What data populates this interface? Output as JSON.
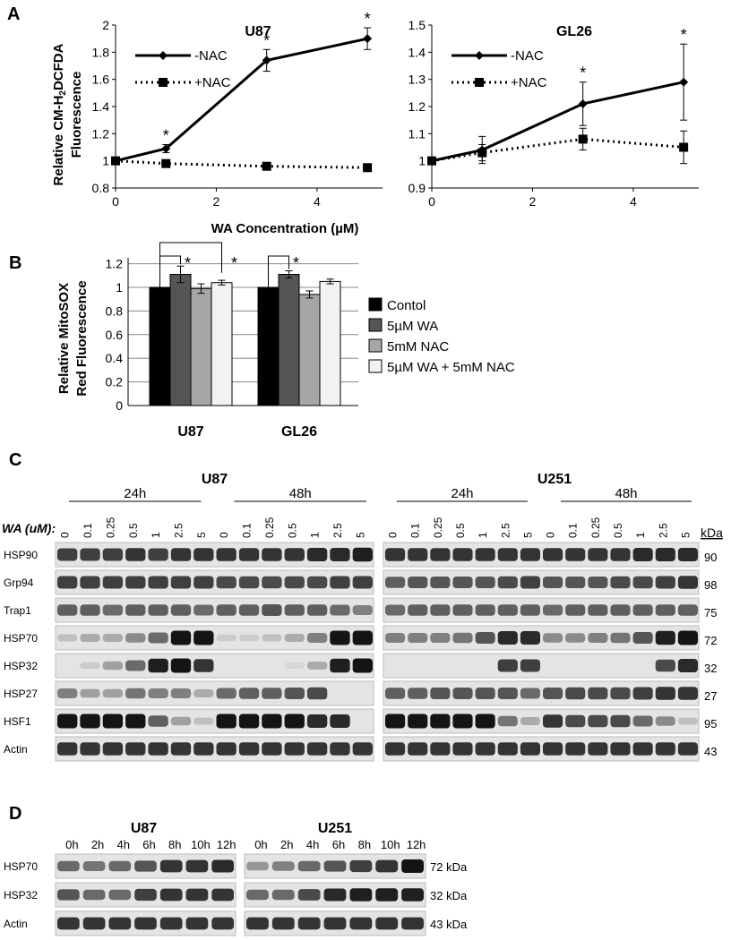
{
  "panels": {
    "A": "A",
    "B": "B",
    "C": "C",
    "D": "D"
  },
  "panelA": {
    "xlabel": "WA Concentration (µM)",
    "ylabel_line1": "Relative CM-H",
    "ylabel_sub": "2",
    "ylabel_rest": "DCFDA",
    "ylabel_line2": "Fluorescence",
    "legend": [
      "-NAC",
      "+NAC"
    ],
    "asterisk": "*"
  },
  "chart_data": [
    {
      "type": "line",
      "title": "U87",
      "x": [
        0,
        1,
        3,
        5
      ],
      "series": [
        {
          "name": "-NAC",
          "values": [
            1.0,
            1.09,
            1.74,
            1.9
          ],
          "errors": [
            0.0,
            0.03,
            0.08,
            0.08
          ]
        },
        {
          "name": "+NAC",
          "values": [
            1.0,
            0.98,
            0.96,
            0.95
          ],
          "errors": [
            0.0,
            0.0,
            0.0,
            0.0
          ]
        }
      ],
      "significant": [
        false,
        true,
        true,
        true
      ],
      "xticks": [
        0,
        2,
        4
      ],
      "yticks": [
        0.8,
        1,
        1.2,
        1.4,
        1.6,
        1.8,
        2
      ],
      "xlim": [
        0,
        5.3
      ],
      "ylim": [
        0.8,
        2.0
      ]
    },
    {
      "type": "line",
      "title": "GL26",
      "x": [
        0,
        1,
        3,
        5
      ],
      "series": [
        {
          "name": "-NAC",
          "values": [
            1.0,
            1.04,
            1.21,
            1.29
          ],
          "errors": [
            0.0,
            0.05,
            0.08,
            0.14
          ]
        },
        {
          "name": "+NAC",
          "values": [
            1.0,
            1.03,
            1.08,
            1.05
          ],
          "errors": [
            0.0,
            0.03,
            0.04,
            0.06
          ]
        }
      ],
      "significant": [
        false,
        false,
        true,
        true
      ],
      "xticks": [
        0,
        2,
        4
      ],
      "yticks": [
        0.9,
        1,
        1.1,
        1.2,
        1.3,
        1.4,
        1.5
      ],
      "xlim": [
        0,
        5.3
      ],
      "ylim": [
        0.9,
        1.5
      ]
    },
    {
      "type": "bar",
      "categories": [
        "U87",
        "GL26"
      ],
      "ylabel_line1": "Relative MitoSOX",
      "ylabel_line2": "Red Fluorescence",
      "yticks": [
        0,
        0.2,
        0.4,
        0.6,
        0.8,
        1,
        1.2
      ],
      "ylim": [
        0,
        1.25
      ],
      "series": [
        {
          "name": "Contol",
          "color": "#000000",
          "values": [
            1.0,
            1.0
          ],
          "errors": [
            0,
            0
          ]
        },
        {
          "name": "5µM WA",
          "color": "#555555",
          "values": [
            1.11,
            1.11
          ],
          "errors": [
            0.07,
            0.03
          ]
        },
        {
          "name": "5mM NAC",
          "color": "#a6a6a6",
          "values": [
            0.99,
            0.94
          ],
          "errors": [
            0.04,
            0.03
          ]
        },
        {
          "name": "5µM WA + 5mM NAC",
          "color": "#f2f2f2",
          "values": [
            1.04,
            1.05
          ],
          "errors": [
            0.02,
            0.02
          ]
        }
      ]
    }
  ],
  "panelC": {
    "label": "WA (uM):",
    "kda_label": "kDa",
    "groups": [
      {
        "cell": "U87",
        "times": [
          "24h",
          "48h"
        ]
      },
      {
        "cell": "U251",
        "times": [
          "24h",
          "48h"
        ]
      }
    ],
    "doses": [
      "0",
      "0.1",
      "0.25",
      "0.5",
      "1",
      "2.5",
      "5"
    ],
    "rows": [
      {
        "name": "HSP90",
        "kda": "90"
      },
      {
        "name": "Grp94",
        "kda": "98"
      },
      {
        "name": "Trap1",
        "kda": "75"
      },
      {
        "name": "HSP70",
        "kda": "72"
      },
      {
        "name": "HSP32",
        "kda": "32"
      },
      {
        "name": "HSP27",
        "kda": "27"
      },
      {
        "name": "HSF1",
        "kda": "95"
      },
      {
        "name": "Actin",
        "kda": "43"
      }
    ],
    "intensity": [
      [
        [
          0.8,
          0.8,
          0.8,
          0.85,
          0.8,
          0.85,
          0.85,
          0.85,
          0.85,
          0.85,
          0.85,
          0.9,
          0.9,
          0.95
        ],
        [
          0.85,
          0.85,
          0.85,
          0.85,
          0.85,
          0.85,
          0.85,
          0.85,
          0.85,
          0.85,
          0.85,
          0.9,
          0.9,
          0.9
        ]
      ],
      [
        [
          0.8,
          0.8,
          0.8,
          0.8,
          0.8,
          0.8,
          0.8,
          0.75,
          0.75,
          0.75,
          0.75,
          0.75,
          0.8,
          0.8
        ],
        [
          0.65,
          0.7,
          0.7,
          0.7,
          0.7,
          0.75,
          0.8,
          0.7,
          0.7,
          0.7,
          0.75,
          0.75,
          0.8,
          0.85
        ]
      ],
      [
        [
          0.65,
          0.65,
          0.6,
          0.65,
          0.65,
          0.65,
          0.6,
          0.65,
          0.65,
          0.7,
          0.65,
          0.65,
          0.6,
          0.5
        ],
        [
          0.6,
          0.65,
          0.65,
          0.65,
          0.65,
          0.65,
          0.65,
          0.6,
          0.65,
          0.65,
          0.65,
          0.65,
          0.65,
          0.65
        ]
      ],
      [
        [
          0.2,
          0.3,
          0.3,
          0.45,
          0.6,
          1.0,
          1.0,
          0.15,
          0.15,
          0.2,
          0.3,
          0.5,
          1.0,
          1.0
        ],
        [
          0.5,
          0.5,
          0.5,
          0.55,
          0.7,
          0.9,
          0.9,
          0.45,
          0.45,
          0.5,
          0.55,
          0.7,
          0.95,
          1.0
        ]
      ],
      [
        [
          0.0,
          0.15,
          0.35,
          0.6,
          0.95,
          1.0,
          0.85,
          0.0,
          0.0,
          0.0,
          0.1,
          0.3,
          0.95,
          1.0
        ],
        [
          0.0,
          0.0,
          0.0,
          0.0,
          0.0,
          0.8,
          0.8,
          0.0,
          0.0,
          0.0,
          0.0,
          0.0,
          0.75,
          0.9
        ]
      ],
      [
        [
          0.5,
          0.35,
          0.35,
          0.55,
          0.5,
          0.5,
          0.3,
          0.6,
          0.65,
          0.65,
          0.7,
          0.75,
          0.0,
          0.0
        ],
        [
          0.65,
          0.65,
          0.7,
          0.7,
          0.7,
          0.7,
          0.6,
          0.7,
          0.75,
          0.75,
          0.75,
          0.8,
          0.85,
          0.85
        ]
      ],
      [
        [
          1.0,
          1.0,
          1.0,
          1.0,
          0.65,
          0.35,
          0.2,
          1.0,
          1.0,
          1.0,
          1.0,
          0.9,
          0.9,
          0.0
        ],
        [
          1.0,
          1.0,
          1.0,
          1.0,
          1.0,
          0.55,
          0.3,
          0.85,
          0.75,
          0.75,
          0.75,
          0.6,
          0.45,
          0.2
        ]
      ],
      [
        [
          0.85,
          0.85,
          0.85,
          0.85,
          0.85,
          0.85,
          0.85,
          0.85,
          0.85,
          0.85,
          0.85,
          0.85,
          0.85,
          0.85
        ],
        [
          0.85,
          0.85,
          0.85,
          0.85,
          0.85,
          0.85,
          0.85,
          0.85,
          0.85,
          0.85,
          0.85,
          0.85,
          0.85,
          0.85
        ]
      ]
    ]
  },
  "panelD": {
    "groups": [
      "U87",
      "U251"
    ],
    "times": [
      "0h",
      "2h",
      "4h",
      "6h",
      "8h",
      "10h",
      "12h"
    ],
    "rows": [
      {
        "name": "HSP70",
        "kda": "72 kDa"
      },
      {
        "name": "HSP32",
        "kda": "32 kDa"
      },
      {
        "name": "Actin",
        "kda": "43 kDa"
      }
    ],
    "intensity": [
      [
        [
          0.6,
          0.55,
          0.6,
          0.7,
          0.85,
          0.85,
          0.9
        ],
        [
          0.4,
          0.5,
          0.6,
          0.7,
          0.8,
          0.85,
          1.0
        ]
      ],
      [
        [
          0.7,
          0.6,
          0.6,
          0.8,
          0.85,
          0.85,
          0.85
        ],
        [
          0.6,
          0.6,
          0.75,
          0.9,
          0.95,
          0.95,
          0.95
        ]
      ],
      [
        [
          0.85,
          0.85,
          0.85,
          0.85,
          0.85,
          0.85,
          0.85
        ],
        [
          0.85,
          0.85,
          0.85,
          0.85,
          0.85,
          0.85,
          0.85
        ]
      ]
    ]
  }
}
